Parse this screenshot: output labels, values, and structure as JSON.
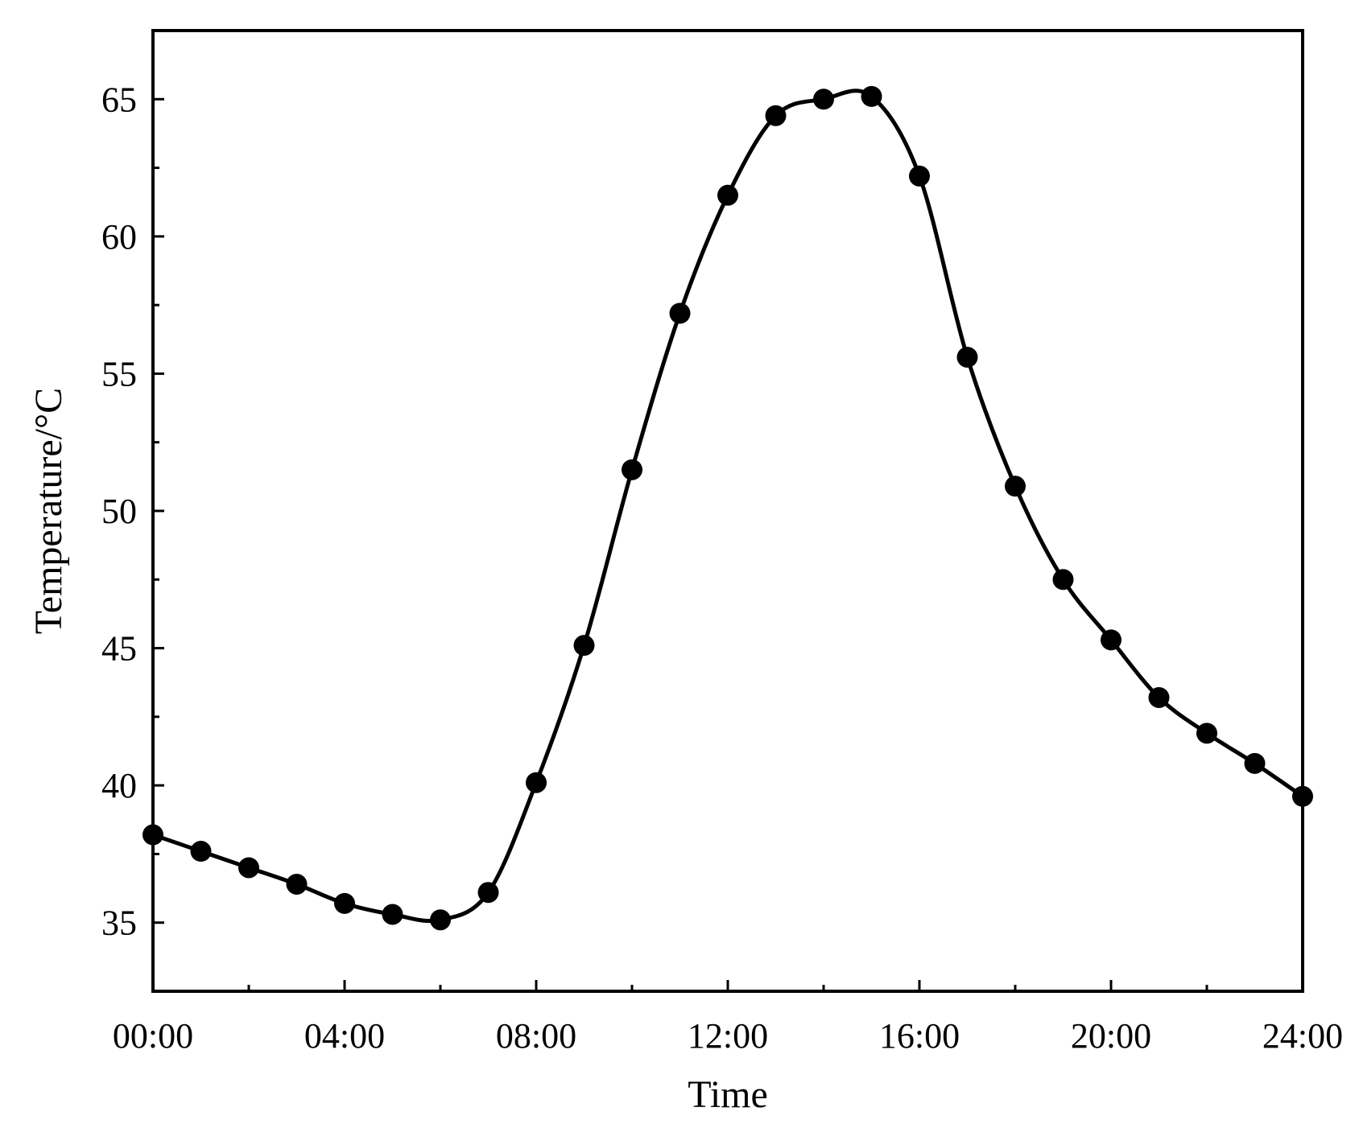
{
  "chart_data": {
    "type": "line",
    "title": "",
    "xlabel": "Time",
    "ylabel": "Temperature/°C",
    "x_ticks": [
      "00:00",
      "04:00",
      "08:00",
      "12:00",
      "16:00",
      "20:00",
      "24:00"
    ],
    "y_ticks": [
      35,
      40,
      45,
      50,
      55,
      60,
      65
    ],
    "xlim": [
      0,
      24
    ],
    "ylim": [
      32.5,
      67.5
    ],
    "grid": false,
    "legend": "none",
    "colors": {
      "line": "#000000",
      "marker": "#000000"
    },
    "series": [
      {
        "x": [
          0,
          1,
          2,
          3,
          4,
          5,
          6,
          7,
          8,
          9,
          10,
          11,
          12,
          13,
          14,
          15,
          16,
          17,
          18,
          19,
          20,
          21,
          22,
          23,
          24
        ],
        "y": [
          38.2,
          37.6,
          37.0,
          36.4,
          35.7,
          35.3,
          35.1,
          36.1,
          40.1,
          45.1,
          51.5,
          57.2,
          61.5,
          64.4,
          65.0,
          65.1,
          62.2,
          55.6,
          50.9,
          47.5,
          45.3,
          43.2,
          41.9,
          40.8,
          39.6
        ]
      }
    ]
  }
}
